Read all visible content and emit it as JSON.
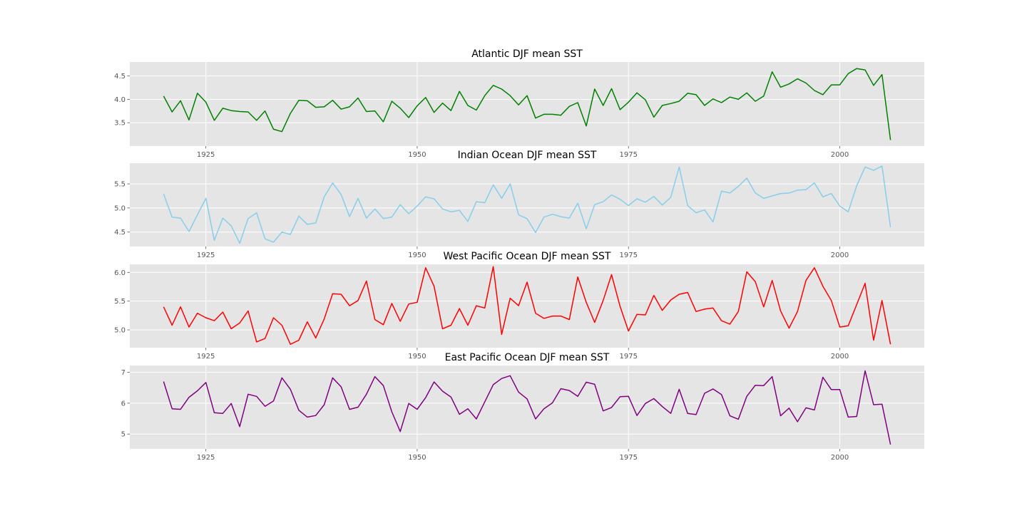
{
  "chart_data": [
    {
      "type": "line",
      "title": "Atlantic DJF mean SST",
      "color": "#008000",
      "grid": true,
      "x_start": 1920,
      "xlim": [
        1916,
        2010
      ],
      "xticks": [
        1925,
        1950,
        1975,
        2000
      ],
      "ylim": [
        3.0,
        4.8
      ],
      "yticks": [
        3.5,
        4.0,
        4.5
      ],
      "ytick_labels": [
        "3.5",
        "4.0",
        "4.5"
      ],
      "values": [
        4.07,
        3.73,
        3.97,
        3.56,
        4.13,
        3.94,
        3.55,
        3.81,
        3.76,
        3.74,
        3.73,
        3.55,
        3.75,
        3.36,
        3.31,
        3.7,
        3.98,
        3.97,
        3.83,
        3.84,
        3.98,
        3.79,
        3.84,
        4.03,
        3.74,
        3.75,
        3.52,
        3.96,
        3.81,
        3.61,
        3.86,
        4.04,
        3.72,
        3.92,
        3.76,
        4.17,
        3.87,
        3.77,
        4.08,
        4.3,
        4.22,
        4.08,
        3.88,
        4.08,
        3.6,
        3.68,
        3.68,
        3.66,
        3.85,
        3.93,
        3.43,
        4.22,
        3.87,
        4.23,
        3.78,
        3.94,
        4.14,
        3.99,
        3.62,
        3.87,
        3.91,
        3.96,
        4.13,
        4.1,
        3.87,
        4.01,
        3.93,
        4.05,
        4.0,
        4.14,
        3.96,
        4.07,
        4.59,
        4.26,
        4.33,
        4.44,
        4.35,
        4.19,
        4.1,
        4.31,
        4.31,
        4.55,
        4.66,
        4.63,
        4.3,
        4.53,
        3.13
      ]
    },
    {
      "type": "line",
      "title": "Indian Ocean DJF mean SST",
      "color": "#87ceeb",
      "grid": true,
      "x_start": 1920,
      "xlim": [
        1916,
        2010
      ],
      "xticks": [
        1925,
        1950,
        1975,
        2000
      ],
      "ylim": [
        4.2,
        5.93
      ],
      "yticks": [
        4.5,
        5.0,
        5.5
      ],
      "ytick_labels": [
        "4.5",
        "5.0",
        "5.5"
      ],
      "values": [
        5.29,
        4.81,
        4.79,
        4.51,
        4.86,
        5.2,
        4.33,
        4.79,
        4.63,
        4.27,
        4.78,
        4.9,
        4.36,
        4.29,
        4.5,
        4.45,
        4.83,
        4.66,
        4.69,
        5.23,
        5.52,
        5.28,
        4.82,
        5.2,
        4.79,
        4.98,
        4.78,
        4.81,
        5.07,
        4.88,
        5.04,
        5.23,
        5.19,
        4.98,
        4.92,
        4.95,
        4.72,
        5.13,
        5.11,
        5.48,
        5.2,
        5.5,
        4.86,
        4.78,
        4.49,
        4.81,
        4.87,
        4.82,
        4.79,
        5.1,
        4.57,
        5.07,
        5.13,
        5.27,
        5.18,
        5.05,
        5.19,
        5.12,
        5.24,
        5.06,
        5.22,
        5.85,
        5.05,
        4.9,
        4.96,
        4.71,
        5.35,
        5.31,
        5.45,
        5.62,
        5.31,
        5.2,
        5.25,
        5.3,
        5.31,
        5.37,
        5.38,
        5.52,
        5.23,
        5.3,
        5.04,
        4.92,
        5.46,
        5.85,
        5.78,
        5.87,
        4.6
      ]
    },
    {
      "type": "line",
      "title": "West Pacific Ocean DJF mean SST",
      "color": "#ff0000",
      "grid": true,
      "x_start": 1920,
      "xlim": [
        1916,
        2010
      ],
      "xticks": [
        1925,
        1950,
        1975,
        2000
      ],
      "ylim": [
        4.69,
        6.14
      ],
      "yticks": [
        5.0,
        5.5,
        6.0
      ],
      "ytick_labels": [
        "5.0",
        "5.5",
        "6.0"
      ],
      "values": [
        5.4,
        5.08,
        5.4,
        5.05,
        5.29,
        5.21,
        5.16,
        5.31,
        5.02,
        5.12,
        5.33,
        4.79,
        4.85,
        5.21,
        5.08,
        4.75,
        4.82,
        5.14,
        4.86,
        5.19,
        5.63,
        5.62,
        5.42,
        5.51,
        5.85,
        5.18,
        5.09,
        5.46,
        5.15,
        5.45,
        5.48,
        6.08,
        5.76,
        5.02,
        5.08,
        5.37,
        5.08,
        5.42,
        5.38,
        6.1,
        4.92,
        5.55,
        5.42,
        5.83,
        5.29,
        5.2,
        5.24,
        5.24,
        5.18,
        5.92,
        5.48,
        5.13,
        5.51,
        5.96,
        5.41,
        4.98,
        5.27,
        5.26,
        5.6,
        5.34,
        5.52,
        5.62,
        5.65,
        5.32,
        5.36,
        5.38,
        5.16,
        5.1,
        5.32,
        6.01,
        5.84,
        5.4,
        5.86,
        5.33,
        5.03,
        5.32,
        5.86,
        6.08,
        5.76,
        5.51,
        5.05,
        5.07,
        5.44,
        5.81,
        4.82,
        5.51,
        4.75
      ]
    },
    {
      "type": "line",
      "title": "East Pacific Ocean DJF mean SST",
      "color": "#800080",
      "grid": true,
      "x_start": 1920,
      "xlim": [
        1916,
        2010
      ],
      "xticks": [
        1925,
        1950,
        1975,
        2000
      ],
      "ylim": [
        4.52,
        7.22
      ],
      "yticks": [
        5,
        6,
        7
      ],
      "ytick_labels": [
        "5",
        "6",
        "7"
      ],
      "values": [
        6.7,
        5.82,
        5.8,
        6.19,
        6.4,
        6.67,
        5.69,
        5.67,
        5.99,
        5.24,
        6.29,
        6.22,
        5.9,
        6.07,
        6.82,
        6.45,
        5.77,
        5.55,
        5.6,
        5.95,
        6.82,
        6.53,
        5.8,
        5.87,
        6.29,
        6.86,
        6.57,
        5.72,
        5.08,
        5.99,
        5.8,
        6.18,
        6.69,
        6.39,
        6.2,
        5.64,
        5.82,
        5.49,
        6.04,
        6.6,
        6.8,
        6.89,
        6.36,
        6.14,
        5.49,
        5.82,
        6.01,
        6.47,
        6.41,
        6.22,
        6.68,
        6.61,
        5.75,
        5.86,
        6.21,
        6.22,
        5.6,
        5.99,
        6.15,
        5.89,
        5.67,
        6.45,
        5.67,
        5.63,
        6.32,
        6.46,
        6.28,
        5.59,
        5.48,
        6.22,
        6.58,
        6.57,
        6.86,
        5.59,
        5.84,
        5.4,
        5.85,
        5.78,
        6.84,
        6.44,
        6.44,
        5.55,
        5.57,
        7.05,
        5.95,
        5.97,
        4.66
      ]
    }
  ]
}
